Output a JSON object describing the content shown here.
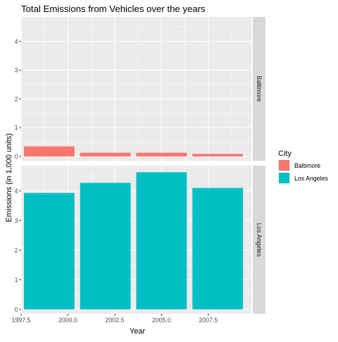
{
  "chart_data": {
    "type": "bar",
    "title": "Total Emissions from Vehicles over the years",
    "xlabel": "Year",
    "ylabel": "Emissions (in 1,000 units)",
    "x": [
      1999,
      2002,
      2005,
      2008
    ],
    "xlim": [
      1997.5,
      2009.8
    ],
    "x_ticks": [
      1997.5,
      2000.0,
      2002.5,
      2005.0,
      2007.5
    ],
    "x_tick_labels": [
      "1997.5",
      "2000.0",
      "2002.5",
      "2005.0",
      "2007.5"
    ],
    "ylim": [
      -0.15,
      4.85
    ],
    "y_ticks": [
      0,
      1,
      2,
      3,
      4
    ],
    "y_tick_labels": [
      "0",
      "1",
      "2",
      "3",
      "4"
    ],
    "grid": true,
    "legend_position": "right",
    "legend_title": "City",
    "facet_direction": "rows",
    "series": [
      {
        "name": "Baltimore",
        "color": "#F8766D",
        "values": [
          0.35,
          0.13,
          0.13,
          0.09
        ]
      },
      {
        "name": "Los Angeles",
        "color": "#00BFC4",
        "values": [
          3.93,
          4.27,
          4.63,
          4.1
        ]
      }
    ]
  }
}
